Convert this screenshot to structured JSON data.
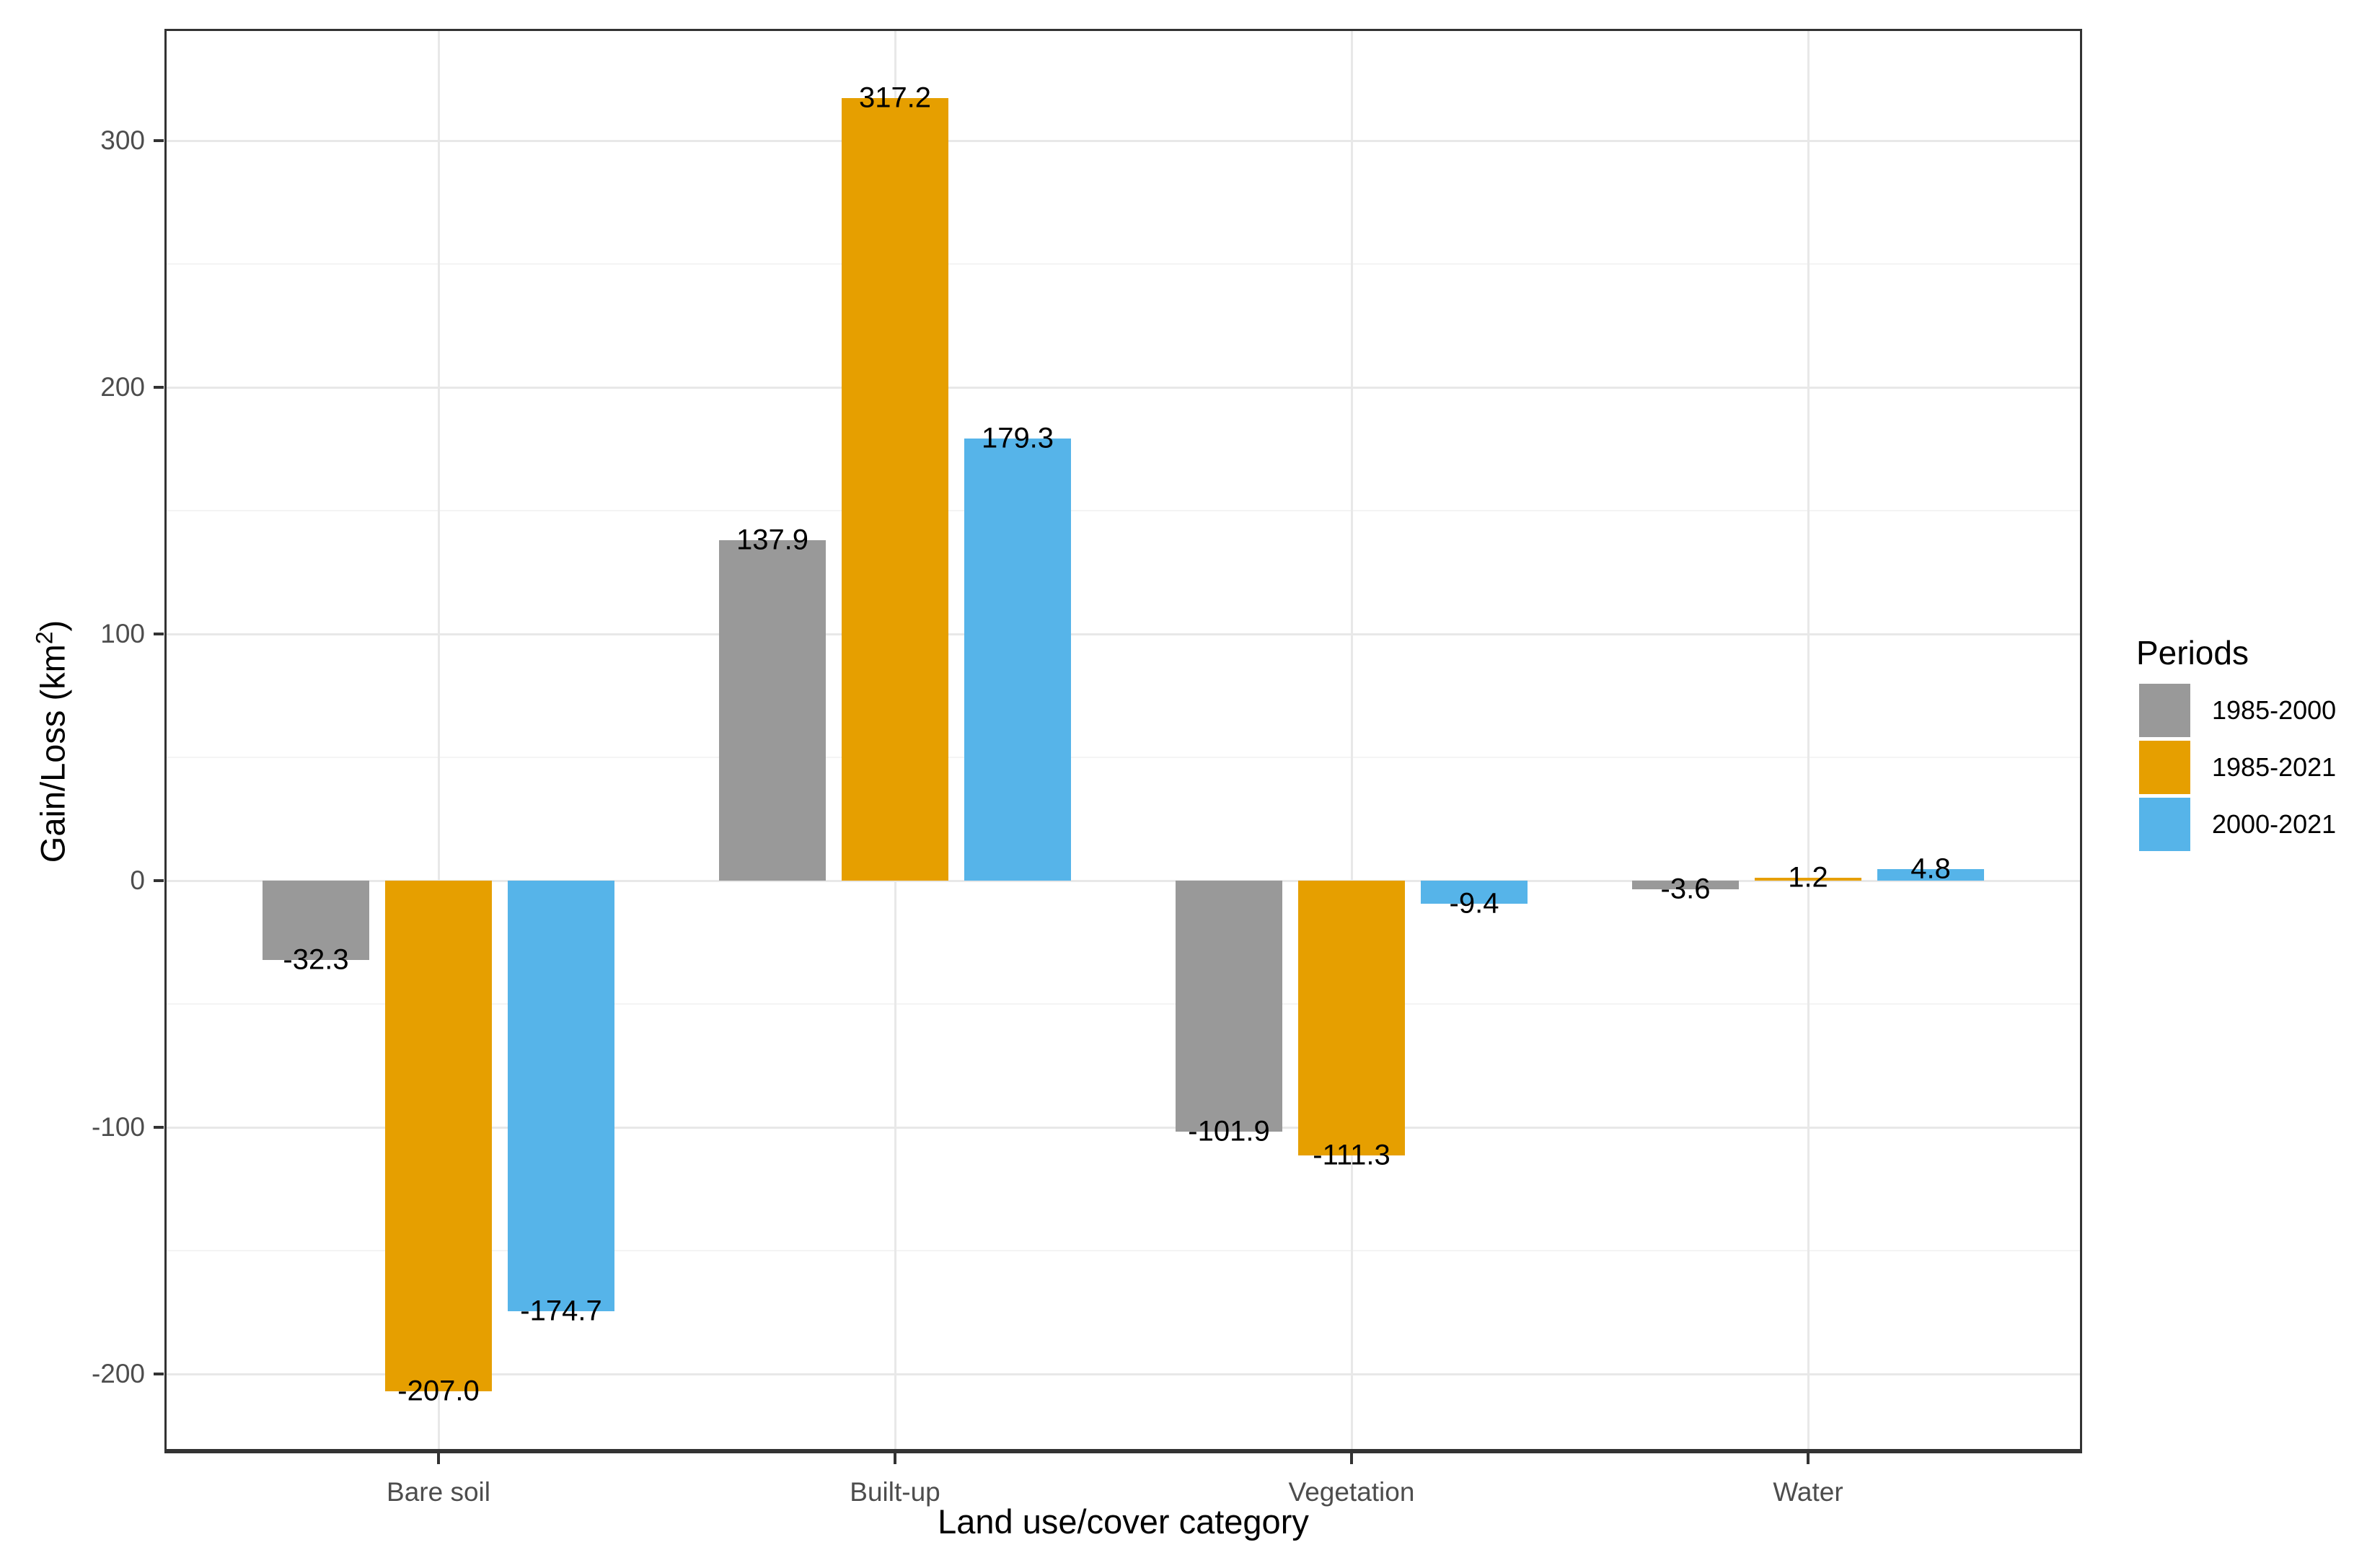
{
  "chart_data": {
    "type": "bar",
    "title": "",
    "categories": [
      "Bare soil",
      "Built-up",
      "Vegetation",
      "Water"
    ],
    "series": [
      {
        "name": "1985-2000",
        "color": "#999999",
        "values": [
          -32.3,
          137.9,
          -101.9,
          -3.6
        ]
      },
      {
        "name": "1985-2021",
        "color": "#E69F00",
        "values": [
          -207.0,
          317.2,
          -111.3,
          1.2
        ]
      },
      {
        "name": "2000-2021",
        "color": "#56B4E9",
        "values": [
          -174.7,
          179.3,
          -9.4,
          4.8
        ]
      }
    ],
    "bar_labels": [
      [
        "-32.3",
        "137.9",
        "-101.9",
        "-3.6"
      ],
      [
        "-207.0",
        "317.2",
        "-111.3",
        "1.2"
      ],
      [
        "-174.7",
        "179.3",
        "-9.4",
        "4.8"
      ]
    ],
    "xlabel": "Land use/cover category",
    "ylabel": "Gain/Loss (km²)",
    "ylabel_parts": {
      "prefix": "Gain/Loss (km",
      "sup": "2",
      "suffix": ")"
    },
    "y_ticks": [
      300,
      200,
      100,
      0,
      -100,
      -200
    ],
    "y_tick_labels": [
      "300",
      "200",
      "100",
      "0",
      "-100",
      "-200"
    ],
    "y_minor_ticks": [
      250,
      150,
      50,
      -50,
      -150
    ],
    "ylim": [
      -232.2,
      345.3
    ],
    "grid": true,
    "legend_title": "Periods",
    "legend_position": "right",
    "colors": {
      "panel_border": "#333333",
      "grid_major": "#e8e8e8",
      "grid_minor": "#f4f4f4",
      "tick_text": "#4d4d4d",
      "label_text": "#000000",
      "background": "#ffffff"
    }
  }
}
